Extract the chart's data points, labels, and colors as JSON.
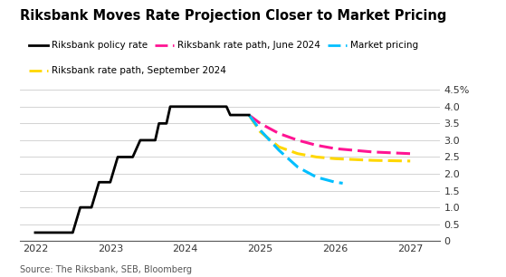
{
  "title": "Riksbank Moves Rate Projection Closer to Market Pricing",
  "source": "Source: The Riksbank, SEB, Bloomberg",
  "background_color": "#ffffff",
  "ylim": [
    0,
    4.7
  ],
  "yticks": [
    0,
    0.5,
    1.0,
    1.5,
    2.0,
    2.5,
    3.0,
    3.5,
    4.0,
    4.5
  ],
  "ytick_labels": [
    "0",
    "0.5",
    "1.0",
    "1.5",
    "2.0",
    "2.5",
    "3.0",
    "3.5",
    "4.0",
    "4.5%"
  ],
  "xlim": [
    2021.8,
    2027.4
  ],
  "xticks": [
    2022,
    2023,
    2024,
    2025,
    2026,
    2027
  ],
  "policy_rate": {
    "x": [
      2022.0,
      2022.1,
      2022.5,
      2022.6,
      2022.75,
      2022.85,
      2023.0,
      2023.1,
      2023.3,
      2023.4,
      2023.6,
      2023.65,
      2023.75,
      2023.8,
      2024.0,
      2024.05,
      2024.5,
      2024.55,
      2024.6,
      2024.65,
      2024.75,
      2024.85
    ],
    "y": [
      0.25,
      0.25,
      0.25,
      1.0,
      1.0,
      1.75,
      1.75,
      2.5,
      2.5,
      3.0,
      3.0,
      3.5,
      3.5,
      4.0,
      4.0,
      4.0,
      4.0,
      4.0,
      3.75,
      3.75,
      3.75,
      3.75
    ],
    "color": "#000000",
    "linewidth": 2.0
  },
  "june_path": {
    "x": [
      2024.85,
      2025.0,
      2025.25,
      2025.5,
      2025.75,
      2026.0,
      2026.5,
      2027.0
    ],
    "y": [
      3.75,
      3.5,
      3.2,
      3.0,
      2.85,
      2.75,
      2.65,
      2.6
    ],
    "color": "#ff1493",
    "linewidth": 2.2
  },
  "sept_path": {
    "x": [
      2024.85,
      2025.0,
      2025.25,
      2025.5,
      2025.75,
      2026.0,
      2026.5,
      2027.0
    ],
    "y": [
      3.75,
      3.25,
      2.8,
      2.6,
      2.5,
      2.45,
      2.4,
      2.38
    ],
    "color": "#ffd700",
    "linewidth": 2.2
  },
  "market_pricing": {
    "x": [
      2024.85,
      2025.0,
      2025.25,
      2025.5,
      2025.75,
      2026.0,
      2026.1
    ],
    "y": [
      3.75,
      3.3,
      2.7,
      2.2,
      1.9,
      1.75,
      1.72
    ],
    "color": "#00bfff",
    "linewidth": 2.2
  },
  "legend_row1": [
    {
      "label": "Riksbank policy rate",
      "color": "#000000",
      "dashed": false
    },
    {
      "label": "Riksbank rate path, June 2024",
      "color": "#ff1493",
      "dashed": true
    },
    {
      "label": "Market pricing",
      "color": "#00bfff",
      "dashed": true
    }
  ],
  "legend_row2": [
    {
      "label": "Riksbank rate path, September 2024",
      "color": "#ffd700",
      "dashed": true
    }
  ]
}
